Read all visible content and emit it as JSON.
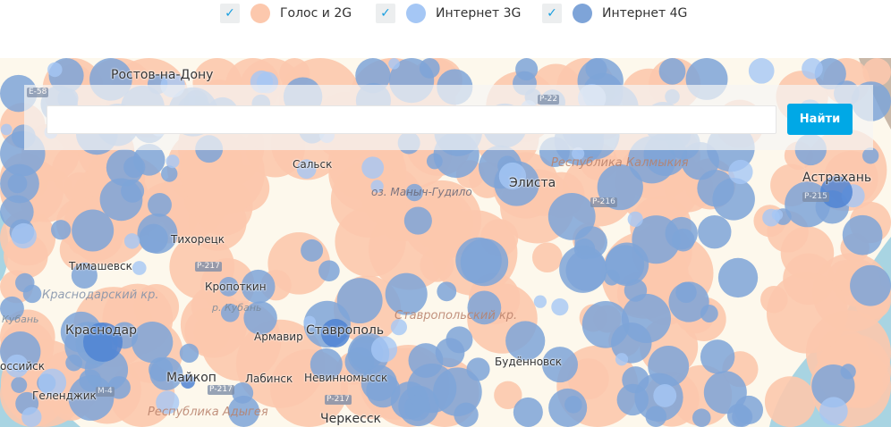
{
  "legend": [
    {
      "label": "Голос и 2G",
      "checked": true,
      "color": "#fcc8ad"
    },
    {
      "label": "Интернет 3G",
      "checked": true,
      "color": "#a5c7f5"
    },
    {
      "label": "Интернет 4G",
      "checked": true,
      "color": "#7ea4d8"
    }
  ],
  "search": {
    "value": "",
    "placeholder": "",
    "button_label": "Найти"
  },
  "map": {
    "cities": [
      "Ростов-на-Дону",
      "Сальск",
      "оз. Маныч-Гудило",
      "Элиста",
      "Астрахань",
      "Тихорецк",
      "Тимашевск",
      "Кропоткин",
      "р. Кубань",
      "Кубань",
      "Краснодар",
      "Армавир",
      "Ставрополь",
      "Будённовск",
      "оссийск",
      "Геленджик",
      "Майкоп",
      "Лабинск",
      "Невинномысск",
      "Черкесск"
    ],
    "regions": [
      "Республика Калмыкия",
      "Краснодарский кр.",
      "Ставропольский кр.",
      "Республика Адыгея"
    ],
    "roads": [
      "Е-58",
      "Р-22",
      "Р-216",
      "Р-215",
      "Р-217",
      "Р-217",
      "М-4",
      "Р-217"
    ]
  },
  "colors": {
    "voice_2g": "#fcc8ad",
    "internet_3g": "#a5c7f5",
    "internet_4g": "#7ea4d8",
    "accent": "#00a8e6",
    "sea": "#a8d4e2",
    "land": "#fdf8ec"
  }
}
